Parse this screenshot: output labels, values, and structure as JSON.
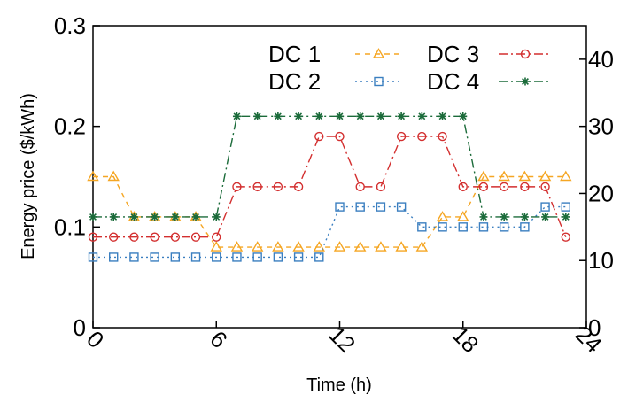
{
  "chart_data": {
    "type": "line",
    "xlabel": "Time (h)",
    "ylabel": "Energy price ($/kWh)",
    "xlim": [
      0,
      24
    ],
    "ylim": [
      0,
      0.3
    ],
    "xticks": [
      "0",
      "6",
      "12",
      "18",
      "24"
    ],
    "yticks": [
      "0",
      "0.1",
      "0.2",
      "0.3"
    ],
    "y2lim": [
      0,
      45
    ],
    "y2ticks": [
      "0",
      "10",
      "20",
      "30",
      "40"
    ],
    "grid": false,
    "legend_position": "top-right",
    "x": [
      0,
      1,
      2,
      3,
      4,
      5,
      6,
      7,
      8,
      9,
      10,
      11,
      12,
      13,
      14,
      15,
      16,
      17,
      18,
      19,
      20,
      21,
      22,
      23
    ],
    "series": [
      {
        "name": "DC 1",
        "marker": "triangle",
        "dash": "dashed",
        "color": "#f5a623",
        "values": [
          0.15,
          0.15,
          0.11,
          0.11,
          0.11,
          0.11,
          0.08,
          0.08,
          0.08,
          0.08,
          0.08,
          0.08,
          0.08,
          0.08,
          0.08,
          0.08,
          0.08,
          0.11,
          0.11,
          0.15,
          0.15,
          0.15,
          0.15,
          0.15
        ]
      },
      {
        "name": "DC 2",
        "marker": "square",
        "dash": "dotted",
        "color": "#3b7fc0",
        "values": [
          0.07,
          0.07,
          0.07,
          0.07,
          0.07,
          0.07,
          0.07,
          0.07,
          0.07,
          0.07,
          0.07,
          0.07,
          0.12,
          0.12,
          0.12,
          0.12,
          0.1,
          0.1,
          0.1,
          0.1,
          0.1,
          0.1,
          0.12,
          0.12
        ]
      },
      {
        "name": "DC 3",
        "marker": "circle",
        "dash": "dashdot",
        "color": "#d32f2f",
        "values": [
          0.09,
          0.09,
          0.09,
          0.09,
          0.09,
          0.09,
          0.09,
          0.14,
          0.14,
          0.14,
          0.14,
          0.19,
          0.19,
          0.14,
          0.14,
          0.19,
          0.19,
          0.19,
          0.14,
          0.14,
          0.14,
          0.14,
          0.14,
          0.09
        ]
      },
      {
        "name": "DC 4",
        "marker": "asterisk",
        "dash": "dashdot",
        "color": "#1b6b3a",
        "values": [
          0.11,
          0.11,
          0.11,
          0.11,
          0.11,
          0.11,
          0.11,
          0.21,
          0.21,
          0.21,
          0.21,
          0.21,
          0.21,
          0.21,
          0.21,
          0.21,
          0.21,
          0.21,
          0.21,
          0.11,
          0.11,
          0.11,
          0.11,
          0.11
        ]
      }
    ]
  }
}
